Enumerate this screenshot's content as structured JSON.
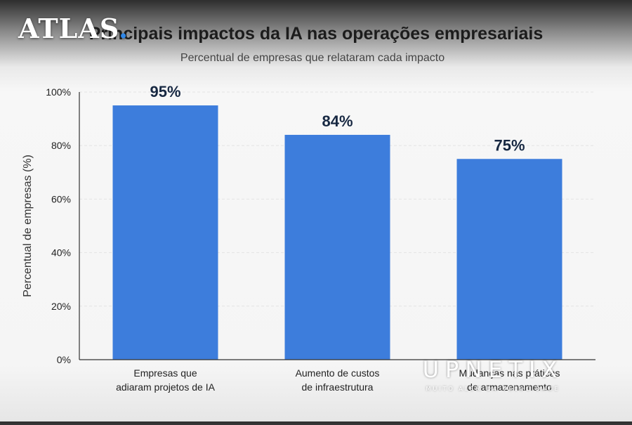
{
  "chart_data": {
    "type": "bar",
    "title": "Principais impactos da IA nas operações empresariais",
    "subtitle": "Percentual de empresas que relataram cada impacto",
    "ylabel": "Percentual de empresas (%)",
    "xlabel": "",
    "ylim": [
      0,
      100
    ],
    "yticks": [
      "0%",
      "20%",
      "40%",
      "60%",
      "80%",
      "100%"
    ],
    "categories": [
      [
        "Empresas que",
        "adiaram projetos de IA"
      ],
      [
        "Aumento de custos",
        "de infraestrutura"
      ],
      [
        "Mudanças nas práticas",
        "de armazenamento"
      ]
    ],
    "values": [
      95,
      84,
      75
    ],
    "data_labels": [
      "95%",
      "84%",
      "75%"
    ],
    "grid": true,
    "legend": "none",
    "colors": {
      "bar": "#3d7ddc",
      "label": "#172842",
      "axis": "#333333",
      "grid": "#e3e3e3"
    }
  },
  "watermarks": {
    "atlas": {
      "text": "ATLAS",
      "dot": "."
    },
    "upnetix": {
      "text": "UPNETIX",
      "tagline": "MUITO ALÉM DA VELOCIDADE"
    }
  }
}
